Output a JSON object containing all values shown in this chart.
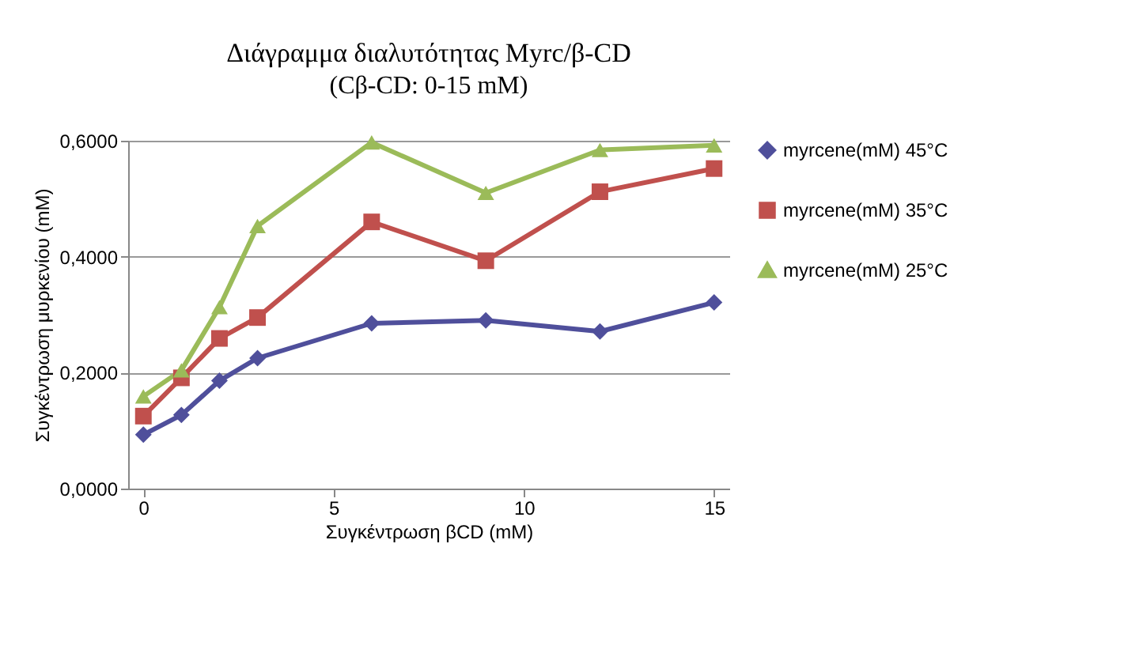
{
  "chart_data": {
    "type": "line",
    "title": "Διάγραμμα διαλυτότητας Myrc/β-CD",
    "subtitle": "(Cβ-CD: 0-15 mM)",
    "xlabel": "Συγκέντρωση βCD (mM)",
    "ylabel": "Συγκέντρωση μυρκενίου (mM)",
    "x": [
      0,
      1,
      2,
      3,
      6,
      9,
      12,
      15
    ],
    "series": [
      {
        "name": "myrcene(mM) 45°C",
        "color": "#4f4f9b",
        "marker": "diamond",
        "values": [
          0.093,
          0.127,
          0.186,
          0.225,
          0.285,
          0.29,
          0.271,
          0.321
        ]
      },
      {
        "name": "myrcene(mM) 35°C",
        "color": "#c0504d",
        "marker": "square",
        "values": [
          0.125,
          0.191,
          0.259,
          0.295,
          0.46,
          0.393,
          0.512,
          0.552
        ]
      },
      {
        "name": "myrcene(mM) 25°C",
        "color": "#9bbb59",
        "marker": "triangle",
        "values": [
          0.159,
          0.204,
          0.313,
          0.453,
          0.597,
          0.51,
          0.584,
          0.592
        ]
      }
    ],
    "xlim": [
      -0.4,
      15.4
    ],
    "xticks": [
      0,
      5,
      10,
      15
    ],
    "ylim": [
      0,
      0.6
    ],
    "yticks": [
      {
        "value": 0,
        "label": "0,0000"
      },
      {
        "value": 0.2,
        "label": "0,2000"
      },
      {
        "value": 0.4,
        "label": "0,4000"
      },
      {
        "value": 0.6,
        "label": "0,6000"
      }
    ],
    "grid": "y",
    "legend": "right"
  }
}
